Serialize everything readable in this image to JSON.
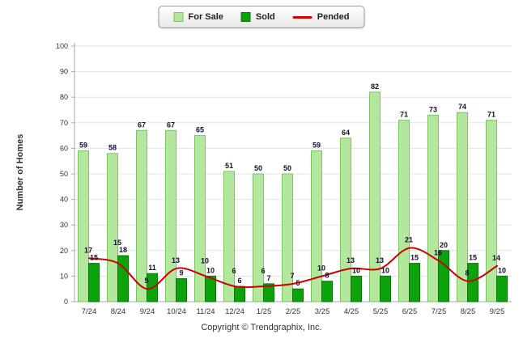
{
  "legend": {
    "for_sale": "For Sale",
    "sold": "Sold",
    "pended": "Pended"
  },
  "footer": "Copyright © Trendgraphix, Inc.",
  "colors": {
    "for_sale_fill": "#b4e79e",
    "for_sale_stroke": "#79c562",
    "sold_fill": "#0ca20c",
    "sold_stroke": "#077807",
    "pended_line": "#cc0000",
    "grid": "#e3e3e3",
    "axis": "#a8a8a8",
    "tick_text": "#333333",
    "value_label": "#10102a"
  },
  "chart_data": {
    "type": "bar",
    "title": "",
    "xlabel": "",
    "ylabel": "Number of Homes",
    "ylim": [
      0,
      100
    ],
    "y_ticks": [
      0,
      10,
      20,
      30,
      40,
      50,
      60,
      70,
      80,
      90,
      100
    ],
    "grid": true,
    "legend_position": "top",
    "categories": [
      "7/24",
      "8/24",
      "9/24",
      "10/24",
      "11/24",
      "12/24",
      "1/25",
      "2/25",
      "3/25",
      "4/25",
      "5/25",
      "6/25",
      "7/25",
      "8/25",
      "9/25"
    ],
    "series": [
      {
        "name": "For Sale",
        "type": "bar",
        "values": [
          59,
          58,
          67,
          67,
          65,
          51,
          50,
          50,
          59,
          64,
          82,
          71,
          73,
          74,
          71
        ]
      },
      {
        "name": "Sold",
        "type": "bar",
        "values": [
          15,
          18,
          11,
          9,
          10,
          6,
          7,
          5,
          8,
          10,
          10,
          15,
          20,
          15,
          10
        ]
      },
      {
        "name": "Pended",
        "type": "line",
        "values": [
          17,
          15,
          5,
          13,
          10,
          6,
          6,
          7,
          10,
          13,
          13,
          21,
          16,
          8,
          14
        ]
      }
    ]
  }
}
